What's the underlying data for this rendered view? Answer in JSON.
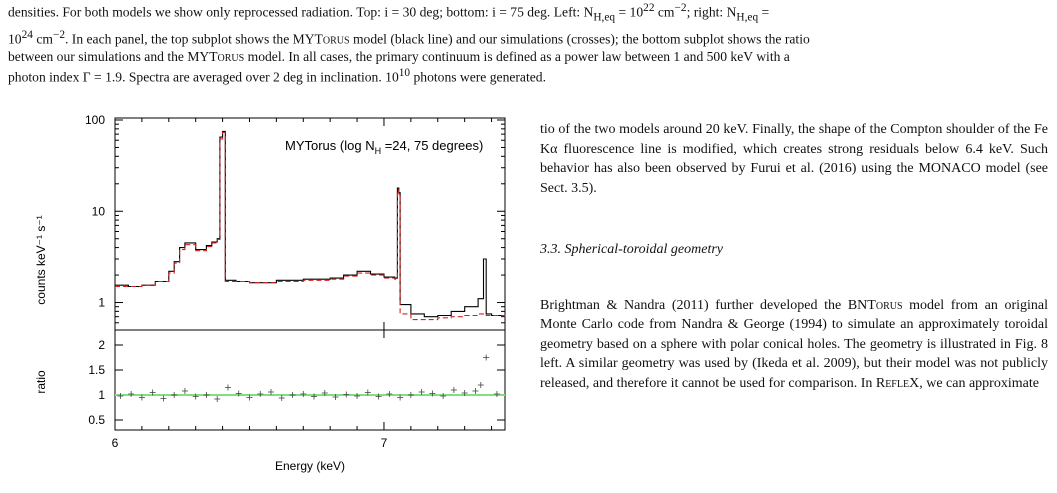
{
  "caption": {
    "line1": "densities. For both models we show only reprocessed radiation. Top: i = 30 deg; bottom: i = 75 deg. Left: N",
    "line1_sub": "H,eq",
    "line1_mid": " = 10",
    "line1_sup": "22",
    "line1_unit": " cm",
    "line1_unit_sup": "−2",
    "line1_tail": "; right: N",
    "line1_tail_sub": "H,eq",
    "line1_tail_end": " =",
    "line2_a": "10",
    "line2_a_sup": "24",
    "line2_b": " cm",
    "line2_b_sup": "−2",
    "line2_c": ". In each panel, the top subplot shows the MYT",
    "line2_d": "orus",
    "line2_e": " model (black line) and our simulations (crosses); the bottom subplot shows the ratio",
    "line3": "between our simulations and the MYT",
    "line3_sc": "orus",
    "line3_tail": " model. In all cases, the primary continuum is defined as a power law between 1 and 500 keV with a",
    "line4_a": "photon index Γ = 1.9. Spectra are averaged over 2 deg in inclination. 10",
    "line4_sup": "10",
    "line4_b": " photons were generated."
  },
  "figure": {
    "annotation_prefix": "MYTorus (log N",
    "annotation_sub": "H",
    "annotation_suffix": " =24, 75 degrees)",
    "top_ylabel": "counts keV⁻¹ s⁻¹",
    "bottom_ylabel": "ratio",
    "xlabel": "Energy (keV)"
  },
  "chart_data": {
    "type": "line",
    "title": "MYTorus (log NH =24, 75 degrees)",
    "xlabel": "Energy (keV)",
    "ylabel": "counts keV⁻¹ s⁻¹",
    "xlim": [
      6.0,
      7.45
    ],
    "ylim": [
      0.5,
      100
    ],
    "yscale": "log",
    "x_ticks": [
      "6",
      "7"
    ],
    "y_ticks": [
      "1",
      "10",
      "100"
    ],
    "series": [
      {
        "color": "#000000",
        "x": [
          6.0,
          6.05,
          6.1,
          6.15,
          6.2,
          6.22,
          6.24,
          6.26,
          6.3,
          6.34,
          6.36,
          6.38,
          6.39,
          6.4,
          6.41,
          6.45,
          6.5,
          6.6,
          6.7,
          6.8,
          6.85,
          6.9,
          6.95,
          7.0,
          7.04,
          7.05,
          7.055,
          7.06,
          7.1,
          7.15,
          7.2,
          7.25,
          7.3,
          7.35,
          7.37,
          7.38,
          7.4,
          7.45
        ],
        "y": [
          1.55,
          1.5,
          1.55,
          1.7,
          2.2,
          2.8,
          4.0,
          4.5,
          3.8,
          4.2,
          4.6,
          5.0,
          65,
          75,
          1.75,
          1.7,
          1.65,
          1.75,
          1.8,
          1.85,
          2.0,
          2.2,
          2.05,
          1.9,
          1.85,
          18,
          16,
          0.95,
          0.75,
          0.7,
          0.72,
          0.8,
          0.9,
          1.1,
          3.0,
          0.75,
          0.72,
          0.7
        ]
      },
      {
        "color": "#d62020",
        "x": [
          6.0,
          6.05,
          6.1,
          6.15,
          6.2,
          6.22,
          6.24,
          6.26,
          6.3,
          6.34,
          6.36,
          6.38,
          6.39,
          6.4,
          6.41,
          6.45,
          6.5,
          6.6,
          6.7,
          6.8,
          6.85,
          6.9,
          6.95,
          7.0,
          7.04,
          7.05,
          7.055,
          7.06,
          7.1,
          7.15,
          7.2,
          7.25,
          7.3,
          7.35,
          7.37,
          7.38,
          7.4,
          7.45
        ],
        "y": [
          1.5,
          1.5,
          1.55,
          1.7,
          2.1,
          2.7,
          3.8,
          4.3,
          3.7,
          4.1,
          4.5,
          4.9,
          62,
          73,
          1.7,
          1.7,
          1.65,
          1.7,
          1.75,
          1.8,
          1.95,
          2.1,
          2.0,
          1.85,
          1.8,
          17,
          15,
          0.75,
          0.65,
          0.65,
          0.68,
          0.7,
          0.72,
          0.75,
          0.75,
          0.72,
          0.72,
          0.7
        ]
      }
    ],
    "ratio": {
      "ylabel": "ratio",
      "ylim": [
        0.3,
        2.3
      ],
      "y_ticks": [
        "0.5",
        "1",
        "1.5",
        "2"
      ],
      "reference": 1.0,
      "reference_color": "#7ee07e",
      "x": [
        6.02,
        6.06,
        6.1,
        6.14,
        6.18,
        6.22,
        6.26,
        6.3,
        6.34,
        6.38,
        6.42,
        6.46,
        6.5,
        6.54,
        6.58,
        6.62,
        6.66,
        6.7,
        6.74,
        6.78,
        6.82,
        6.86,
        6.9,
        6.94,
        6.98,
        7.02,
        7.06,
        7.1,
        7.14,
        7.18,
        7.22,
        7.26,
        7.3,
        7.34,
        7.36,
        7.38,
        7.42
      ],
      "y": [
        0.98,
        1.02,
        0.95,
        1.05,
        0.93,
        1.0,
        1.08,
        0.97,
        1.0,
        0.92,
        1.15,
        1.03,
        0.95,
        1.02,
        1.06,
        0.94,
        1.0,
        1.02,
        0.97,
        1.04,
        0.96,
        1.01,
        0.98,
        1.05,
        0.97,
        1.02,
        0.95,
        1.0,
        1.06,
        1.03,
        0.98,
        1.1,
        1.04,
        1.08,
        1.2,
        1.75,
        1.02
      ]
    }
  },
  "right_col": {
    "para1": "tio of the two models around 20 keV. Finally, the shape of the Compton shoulder of the Fe Kα fluorescence line is modified, which creates strong residuals below 6.4 keV. Such behavior has also been observed by Furui et al. (2016) using the MONACO model (see Sect. 3.5).",
    "section_head": "3.3. Spherical-toroidal geometry",
    "para2_a": "Brightman & Nandra (2011) further developed the BNT",
    "para2_sc": "orus",
    "para2_b": " model from an original Monte Carlo code from Nandra & George (1994) to simulate an approximately toroidal geometry based on a sphere with polar conical holes. The geometry is illustrated in Fig. 8 left. A similar geometry was used by (Ikeda et al. 2009), but their model was not publicly released, and therefore it cannot be used for comparison. In R",
    "para2_sc2": "efle",
    "para2_c": "X, we can approximate"
  }
}
